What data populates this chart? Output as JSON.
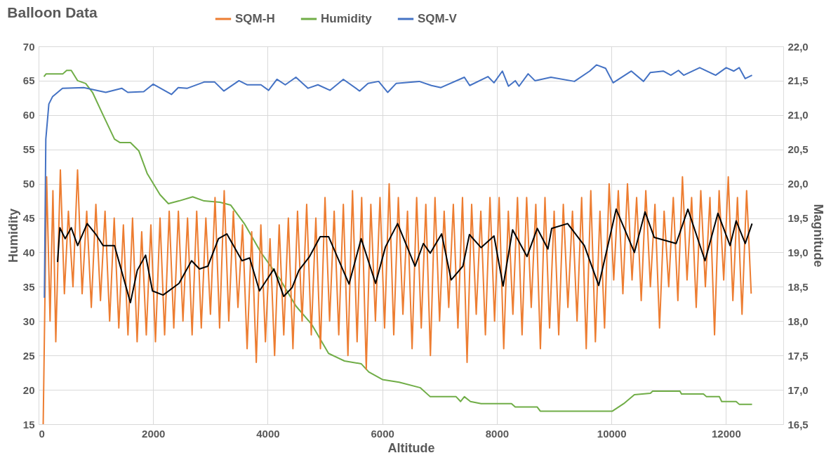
{
  "chart_data": {
    "type": "line",
    "title": "Balloon Data",
    "xlabel": "Altitude",
    "ylabel": "Humidity",
    "y2label": "Magnitude",
    "xlim": [
      0,
      13000
    ],
    "xticks": [
      0,
      2000,
      4000,
      6000,
      8000,
      10000,
      12000
    ],
    "ylim": [
      15,
      70
    ],
    "yticks": [
      15,
      20,
      25,
      30,
      35,
      40,
      45,
      50,
      55,
      60,
      65,
      70
    ],
    "y2lim": [
      16.5,
      22.0
    ],
    "y2ticks": [
      {
        "value": 16.5,
        "label": "16,5"
      },
      {
        "value": 17.0,
        "label": "17,0"
      },
      {
        "value": 17.5,
        "label": "17,5"
      },
      {
        "value": 18.0,
        "label": "18,0"
      },
      {
        "value": 18.5,
        "label": "18,5"
      },
      {
        "value": 19.0,
        "label": "19,0"
      },
      {
        "value": 19.5,
        "label": "19,5"
      },
      {
        "value": 20.0,
        "label": "20,0"
      },
      {
        "value": 20.5,
        "label": "20,5"
      },
      {
        "value": 21.0,
        "label": "21,0"
      },
      {
        "value": 21.5,
        "label": "21,5"
      },
      {
        "value": 22.0,
        "label": "22,0"
      }
    ],
    "grid": true,
    "legend": "top",
    "marker": "none",
    "line_style": "solid",
    "series": [
      {
        "name": "SQM-H",
        "color": "#ed7d31",
        "axis": "y2",
        "x": [
          80,
          140,
          200,
          250,
          300,
          380,
          450,
          520,
          600,
          680,
          760,
          840,
          920,
          1000,
          1080,
          1160,
          1240,
          1320,
          1400,
          1480,
          1560,
          1640,
          1720,
          1800,
          1880,
          1960,
          2040,
          2120,
          2200,
          2280,
          2360,
          2440,
          2520,
          2600,
          2680,
          2760,
          2840,
          2920,
          3000,
          3080,
          3160,
          3240,
          3320,
          3400,
          3480,
          3560,
          3640,
          3720,
          3800,
          3880,
          3960,
          4040,
          4120,
          4200,
          4280,
          4360,
          4440,
          4520,
          4600,
          4680,
          4760,
          4840,
          4920,
          5000,
          5080,
          5160,
          5240,
          5320,
          5400,
          5480,
          5560,
          5640,
          5720,
          5800,
          5880,
          5960,
          6040,
          6120,
          6200,
          6280,
          6360,
          6440,
          6520,
          6600,
          6680,
          6760,
          6840,
          6920,
          7000,
          7080,
          7160,
          7240,
          7320,
          7400,
          7480,
          7560,
          7640,
          7720,
          7800,
          7880,
          7960,
          8040,
          8120,
          8200,
          8280,
          8360,
          8440,
          8520,
          8600,
          8680,
          8760,
          8840,
          8920,
          9000,
          9080,
          9160,
          9240,
          9320,
          9400,
          9480,
          9560,
          9640,
          9720,
          9800,
          9880,
          9960,
          10040,
          10120,
          10200,
          10280,
          10360,
          10440,
          10520,
          10600,
          10680,
          10760,
          10840,
          10920,
          11000,
          11080,
          11160,
          11240,
          11320,
          11400,
          11480,
          11560,
          11640,
          11720,
          11800,
          11880,
          11960,
          12040,
          12120,
          12200,
          12280,
          12360,
          12440
        ],
        "values": [
          16.5,
          20.1,
          18.0,
          19.9,
          17.7,
          20.2,
          18.4,
          19.6,
          18.5,
          20.2,
          18.4,
          19.6,
          18.2,
          19.7,
          18.3,
          19.6,
          18.0,
          19.5,
          17.9,
          19.4,
          17.8,
          19.5,
          17.7,
          19.3,
          17.8,
          19.4,
          17.7,
          19.5,
          17.8,
          19.6,
          17.9,
          19.6,
          18.0,
          19.5,
          17.8,
          19.6,
          17.9,
          19.5,
          18.1,
          19.8,
          17.9,
          19.9,
          18.0,
          19.6,
          18.2,
          19.4,
          17.6,
          19.3,
          17.4,
          19.4,
          17.7,
          19.2,
          17.5,
          19.4,
          17.8,
          19.5,
          17.6,
          19.6,
          18.0,
          19.7,
          17.8,
          19.5,
          17.6,
          19.8,
          18.0,
          19.6,
          17.8,
          19.7,
          17.5,
          19.9,
          17.7,
          19.8,
          17.3,
          19.7,
          18.0,
          19.8,
          17.9,
          20.0,
          17.8,
          19.8,
          18.1,
          19.6,
          17.6,
          19.8,
          17.9,
          19.7,
          17.5,
          19.8,
          18.0,
          19.6,
          18.2,
          19.7,
          17.9,
          19.8,
          17.4,
          19.7,
          18.1,
          19.6,
          17.8,
          19.8,
          18.0,
          19.8,
          17.6,
          19.6,
          18.1,
          19.8,
          17.8,
          19.8,
          18.2,
          19.7,
          17.6,
          19.8,
          17.9,
          19.6,
          17.8,
          19.7,
          18.2,
          19.6,
          18.0,
          19.8,
          17.6,
          19.9,
          17.7,
          19.6,
          17.9,
          20.0,
          18.6,
          19.9,
          18.4,
          20.0,
          18.6,
          19.8,
          18.3,
          19.9,
          18.5,
          19.7,
          17.9,
          19.6,
          18.5,
          19.8,
          18.3,
          20.1,
          18.6,
          19.8,
          18.2,
          19.9,
          18.5,
          19.8,
          17.8,
          19.9,
          18.6,
          20.1,
          18.3,
          19.8,
          18.1,
          19.9,
          18.4
        ]
      },
      {
        "name": "Humidity",
        "color": "#70ad47",
        "x": [
          93,
          132,
          424,
          490,
          570,
          682,
          822,
          941,
          1126,
          1325,
          1418,
          1603,
          1749,
          1895,
          2120,
          2266,
          2451,
          2690,
          2889,
          3167,
          3352,
          3591,
          3882,
          4214,
          4492,
          4770,
          5062,
          5340,
          5631,
          5764,
          6002,
          6294,
          6665,
          6837,
          7288,
          7367,
          7433,
          7539,
          7725,
          8255,
          8321,
          8705,
          8758,
          10017,
          10216,
          10401,
          10680,
          10719,
          11196,
          11223,
          11607,
          11660,
          11885,
          11925,
          12177,
          12230,
          12455
        ],
        "values": [
          65.6,
          66.0,
          66.0,
          66.5,
          66.5,
          65.0,
          64.6,
          63.3,
          60.0,
          56.5,
          56.0,
          56.0,
          54.8,
          51.5,
          48.4,
          47.1,
          47.5,
          48.1,
          47.5,
          47.3,
          46.9,
          44.2,
          40.0,
          36.1,
          32.2,
          29.5,
          25.3,
          24.2,
          23.8,
          22.6,
          21.5,
          21.1,
          20.3,
          19.0,
          19.0,
          18.3,
          19.0,
          18.3,
          18.0,
          18.0,
          17.5,
          17.5,
          16.9,
          16.9,
          18.0,
          19.3,
          19.5,
          19.8,
          19.8,
          19.4,
          19.4,
          19.0,
          19.0,
          18.3,
          18.3,
          17.9,
          17.9
        ]
      },
      {
        "name": "SQM-V",
        "color": "#4472c4",
        "axis": "y2",
        "x": [
          101,
          126,
          179,
          245,
          417,
          788,
          1173,
          1451,
          1557,
          1835,
          2001,
          2319,
          2438,
          2597,
          2888,
          3074,
          3233,
          3498,
          3644,
          3882,
          4015,
          4161,
          4306,
          4492,
          4704,
          4876,
          5088,
          5320,
          5605,
          5751,
          5936,
          6095,
          6241,
          6645,
          6857,
          7023,
          7433,
          7526,
          7844,
          7950,
          8096,
          8202,
          8321,
          8387,
          8546,
          8665,
          8944,
          9354,
          9620,
          9739,
          9898,
          10030,
          10348,
          10560,
          10680,
          10905,
          11037,
          11170,
          11262,
          11541,
          11819,
          12004,
          12137,
          12230,
          12336,
          12455
        ],
        "values": [
          18.34,
          20.65,
          21.16,
          21.27,
          21.39,
          21.4,
          21.33,
          21.39,
          21.33,
          21.34,
          21.45,
          21.3,
          21.4,
          21.39,
          21.48,
          21.48,
          21.35,
          21.5,
          21.44,
          21.44,
          21.36,
          21.52,
          21.44,
          21.55,
          21.39,
          21.44,
          21.36,
          21.52,
          21.35,
          21.46,
          21.49,
          21.33,
          21.46,
          21.49,
          21.43,
          21.4,
          21.55,
          21.43,
          21.56,
          21.47,
          21.64,
          21.42,
          21.5,
          21.42,
          21.6,
          21.5,
          21.55,
          21.49,
          21.64,
          21.73,
          21.68,
          21.47,
          21.64,
          21.49,
          21.62,
          21.64,
          21.58,
          21.65,
          21.58,
          21.69,
          21.58,
          21.69,
          21.64,
          21.69,
          21.53,
          21.58
        ]
      },
      {
        "color": "#000000",
        "axis": "y2",
        "x": [
          331,
          371,
          464,
          570,
          682,
          848,
          994,
          1126,
          1325,
          1603,
          1723,
          1868,
          1988,
          2173,
          2451,
          2670,
          2809,
          2955,
          3140,
          3286,
          3551,
          3684,
          3856,
          4108,
          4280,
          4426,
          4545,
          4730,
          4916,
          5062,
          5419,
          5631,
          5883,
          6055,
          6267,
          6572,
          6717,
          6837,
          7036,
          7202,
          7407,
          7521,
          7725,
          7950,
          8109,
          8275,
          8526,
          8705,
          8891,
          8957,
          9235,
          9527,
          9778,
          10083,
          10401,
          10587,
          10746,
          11130,
          11335,
          11634,
          11859,
          12071,
          12177,
          12336,
          12455
        ],
        "values": [
          18.86,
          19.36,
          19.2,
          19.36,
          19.1,
          19.42,
          19.27,
          19.1,
          19.1,
          18.27,
          18.74,
          18.96,
          18.44,
          18.38,
          18.55,
          18.88,
          18.76,
          18.8,
          19.2,
          19.27,
          18.88,
          18.92,
          18.44,
          18.76,
          18.36,
          18.49,
          18.74,
          18.94,
          19.23,
          19.23,
          18.54,
          19.2,
          18.55,
          19.08,
          19.42,
          18.8,
          19.13,
          18.99,
          19.27,
          18.6,
          18.8,
          19.26,
          19.07,
          19.24,
          18.51,
          19.33,
          18.94,
          19.35,
          19.05,
          19.35,
          19.42,
          19.1,
          18.52,
          19.63,
          19.0,
          19.59,
          19.22,
          19.13,
          19.63,
          18.88,
          19.57,
          19.1,
          19.46,
          19.13,
          19.42
        ]
      }
    ]
  }
}
